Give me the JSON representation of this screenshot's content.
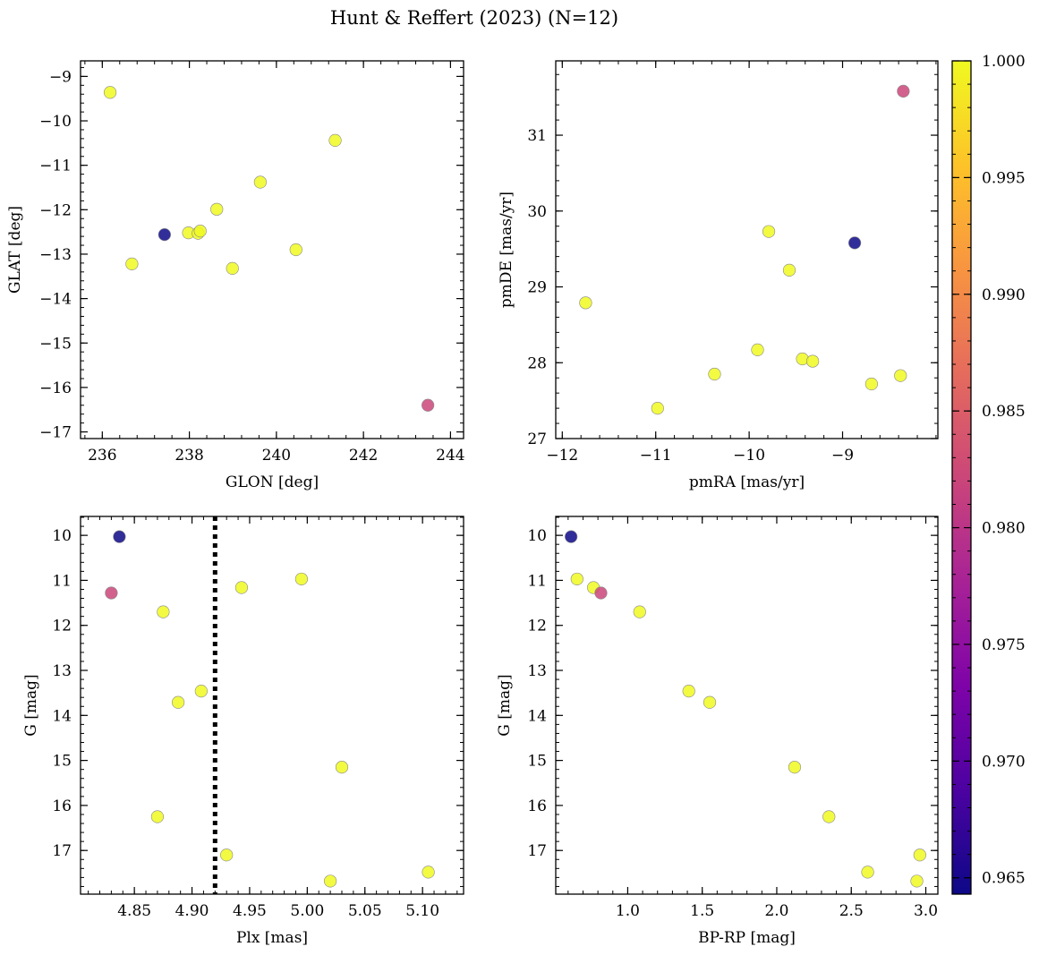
{
  "chart_data": {
    "suptitle": "Hunt & Reffert (2023) (N=12)",
    "colorbar": {
      "colormap": "plasma",
      "range": [
        0.9643,
        1.0
      ],
      "ticks": [
        0.965,
        0.97,
        0.975,
        0.98,
        0.985,
        0.99,
        0.995,
        1.0
      ],
      "tick_labels": [
        "0.965",
        "0.970",
        "0.975",
        "0.980",
        "0.985",
        "0.990",
        "0.995",
        "1.000"
      ]
    },
    "stars": [
      {
        "glon": 236.18,
        "glat": -9.36,
        "pmra": -9.79,
        "pmde": 29.73,
        "plx": 4.995,
        "g": 10.97,
        "bprp": 0.66,
        "prob": 1.0
      },
      {
        "glon": 236.68,
        "glat": -13.22,
        "pmra": -9.43,
        "pmde": 28.05,
        "plx": 4.888,
        "g": 13.71,
        "bprp": 1.55,
        "prob": 1.0
      },
      {
        "glon": 237.43,
        "glat": -12.56,
        "pmra": -8.87,
        "pmde": 29.58,
        "plx": 4.837,
        "g": 10.03,
        "bprp": 0.62,
        "prob": 0.9643
      },
      {
        "glon": 237.98,
        "glat": -12.52,
        "pmra": -10.37,
        "pmde": 27.85,
        "plx": 4.93,
        "g": 17.1,
        "bprp": 2.96,
        "prob": 1.0
      },
      {
        "glon": 238.2,
        "glat": -12.53,
        "pmra": -11.75,
        "pmde": 28.79,
        "plx": 4.875,
        "g": 11.7,
        "bprp": 1.08,
        "prob": 1.0
      },
      {
        "glon": 238.25,
        "glat": -12.48,
        "pmra": -9.32,
        "pmde": 28.02,
        "plx": 4.943,
        "g": 11.16,
        "bprp": 0.77,
        "prob": 1.0
      },
      {
        "glon": 238.63,
        "glat": -11.99,
        "pmra": -9.91,
        "pmde": 28.17,
        "plx": 4.908,
        "g": 13.46,
        "bprp": 1.41,
        "prob": 1.0
      },
      {
        "glon": 238.99,
        "glat": -13.32,
        "pmra": -8.69,
        "pmde": 27.72,
        "plx": 5.02,
        "g": 17.68,
        "bprp": 2.94,
        "prob": 1.0
      },
      {
        "glon": 239.63,
        "glat": -11.38,
        "pmra": -9.57,
        "pmde": 29.22,
        "plx": 5.105,
        "g": 17.48,
        "bprp": 2.61,
        "prob": 1.0
      },
      {
        "glon": 240.45,
        "glat": -12.9,
        "pmra": -10.98,
        "pmde": 27.4,
        "plx": 4.87,
        "g": 16.25,
        "bprp": 2.35,
        "prob": 1.0
      },
      {
        "glon": 241.35,
        "glat": -10.44,
        "pmra": -8.38,
        "pmde": 27.83,
        "plx": 5.03,
        "g": 15.15,
        "bprp": 2.12,
        "prob": 1.0
      },
      {
        "glon": 243.48,
        "glat": -16.4,
        "pmra": -8.35,
        "pmde": 31.58,
        "plx": 4.83,
        "g": 11.28,
        "bprp": 0.82,
        "prob": 0.982
      }
    ],
    "panels": [
      {
        "type": "scatter",
        "x": "glon",
        "y": "glat",
        "xlabel": "GLON [deg]",
        "ylabel": "GLAT [deg]",
        "xlim": [
          235.5,
          244.3
        ],
        "ylim": [
          -17.15,
          -8.65
        ],
        "yinvert": false,
        "xticks": [
          236,
          238,
          240,
          242,
          244
        ],
        "yticks": [
          -17,
          -16,
          -15,
          -14,
          -13,
          -12,
          -11,
          -10,
          -9
        ],
        "xtick_labels": [
          "236",
          "238",
          "240",
          "242",
          "244"
        ],
        "ytick_labels": [
          "−17",
          "−16",
          "−15",
          "−14",
          "−13",
          "−12",
          "−11",
          "−10",
          "−9"
        ]
      },
      {
        "type": "scatter",
        "x": "pmra",
        "y": "pmde",
        "xlabel": "pmRA [mas/yr]",
        "ylabel": "pmDE [mas/yr]",
        "xlim": [
          -12.07,
          -7.98
        ],
        "ylim": [
          27.0,
          31.98
        ],
        "yinvert": false,
        "xticks": [
          -12,
          -11,
          -10,
          -9
        ],
        "yticks": [
          27,
          28,
          29,
          30,
          31
        ],
        "xtick_labels": [
          "−12",
          "−11",
          "−10",
          "−9"
        ],
        "ytick_labels": [
          "27",
          "28",
          "29",
          "30",
          "31"
        ]
      },
      {
        "type": "scatter",
        "x": "plx",
        "y": "g",
        "xlabel": "Plx [mas]",
        "ylabel": "G [mag]",
        "xlim": [
          4.8033,
          5.1356
        ],
        "ylim": [
          9.58,
          17.97
        ],
        "yinvert": true,
        "xticks": [
          4.85,
          4.9,
          4.95,
          5.0,
          5.05,
          5.1
        ],
        "yticks": [
          10,
          11,
          12,
          13,
          14,
          15,
          16,
          17
        ],
        "xtick_labels": [
          "4.85",
          "4.90",
          "4.95",
          "5.00",
          "5.05",
          "5.10"
        ],
        "ytick_labels": [
          "10",
          "11",
          "12",
          "13",
          "14",
          "15",
          "16",
          "17"
        ],
        "vline": 4.92
      },
      {
        "type": "scatter",
        "x": "bprp",
        "y": "g",
        "xlabel": "BP-RP [mag]",
        "ylabel": "G [mag]",
        "xlim": [
          0.517,
          3.081
        ],
        "ylim": [
          9.58,
          17.97
        ],
        "yinvert": true,
        "xticks": [
          1.0,
          1.5,
          2.0,
          2.5,
          3.0
        ],
        "yticks": [
          10,
          11,
          12,
          13,
          14,
          15,
          16,
          17
        ],
        "xtick_labels": [
          "1.0",
          "1.5",
          "2.0",
          "2.5",
          "3.0"
        ],
        "ytick_labels": [
          "10",
          "11",
          "12",
          "13",
          "14",
          "15",
          "16",
          "17"
        ]
      }
    ]
  }
}
